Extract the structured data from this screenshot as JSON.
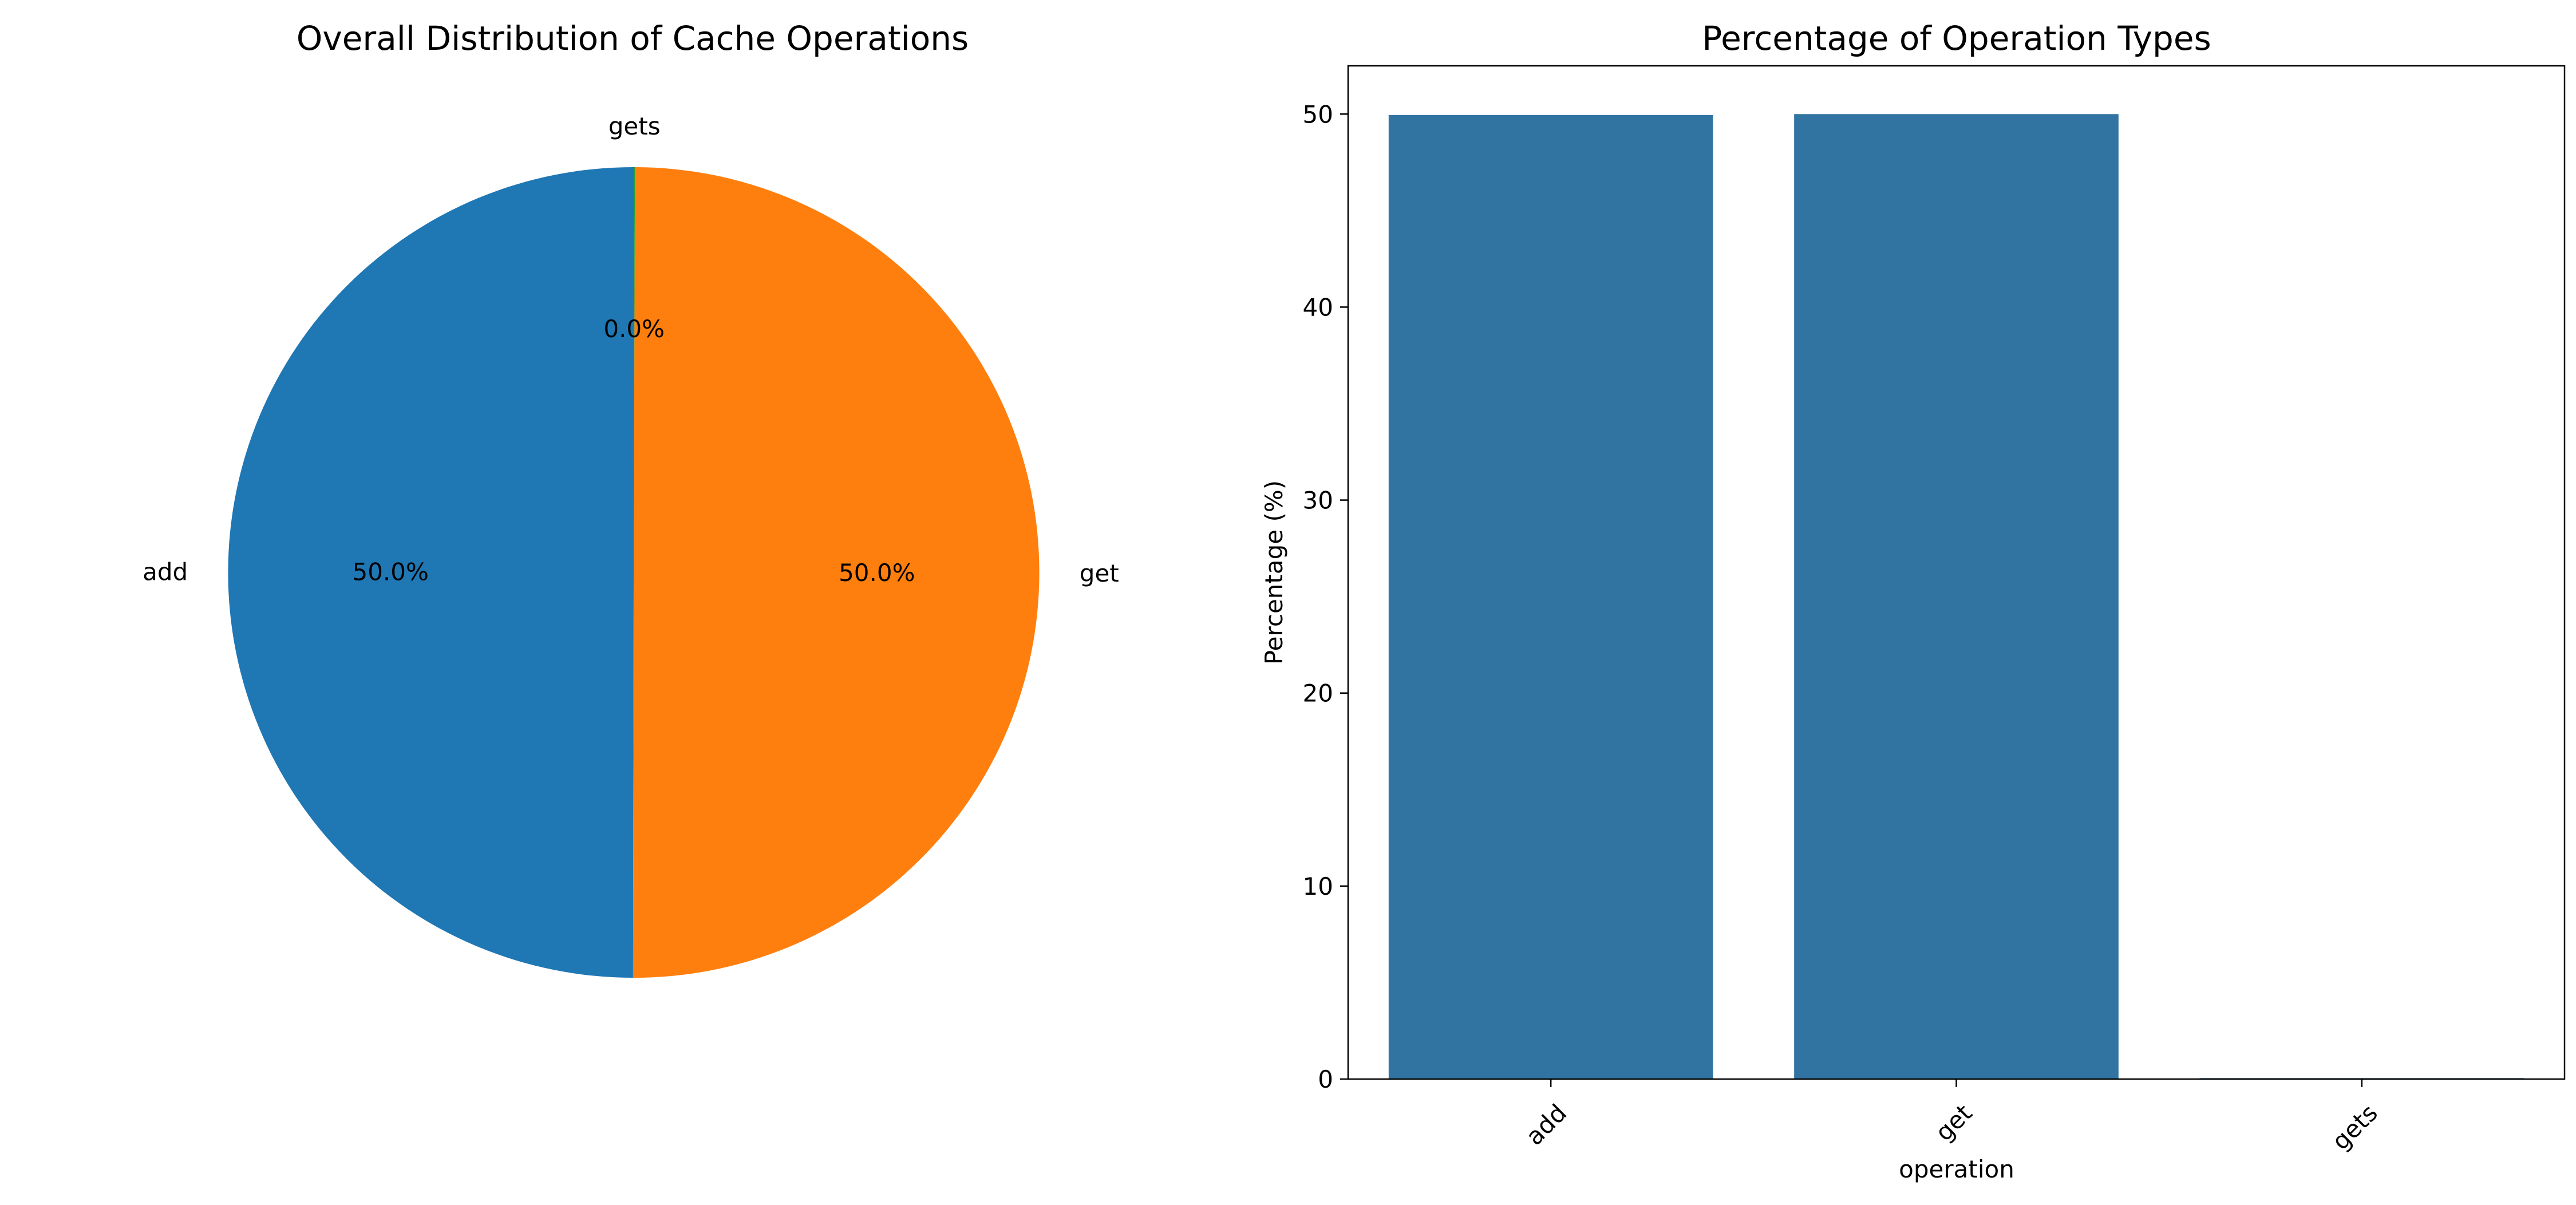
{
  "chart_data": [
    {
      "type": "pie",
      "title": "Overall Distribution of Cache Operations",
      "slices": [
        {
          "label": "add",
          "value": 50.0,
          "display": "50.0%",
          "color": "#1f77b4"
        },
        {
          "label": "get",
          "value": 50.0,
          "display": "50.0%",
          "color": "#ff7f0e"
        },
        {
          "label": "gets",
          "value": 0.05,
          "display": "0.0%",
          "color": "#2ca02c"
        }
      ]
    },
    {
      "type": "bar",
      "title": "Percentage of Operation Types",
      "categories": [
        "add",
        "get",
        "gets"
      ],
      "values": [
        49.95,
        50.0,
        0.05
      ],
      "xlabel": "operation",
      "ylabel": "Percentage (%)",
      "ylim": [
        0,
        52.5
      ],
      "yticks": [
        "0",
        "10",
        "20",
        "30",
        "40",
        "50"
      ],
      "bar_color": "#3274a1",
      "grid": false
    }
  ]
}
